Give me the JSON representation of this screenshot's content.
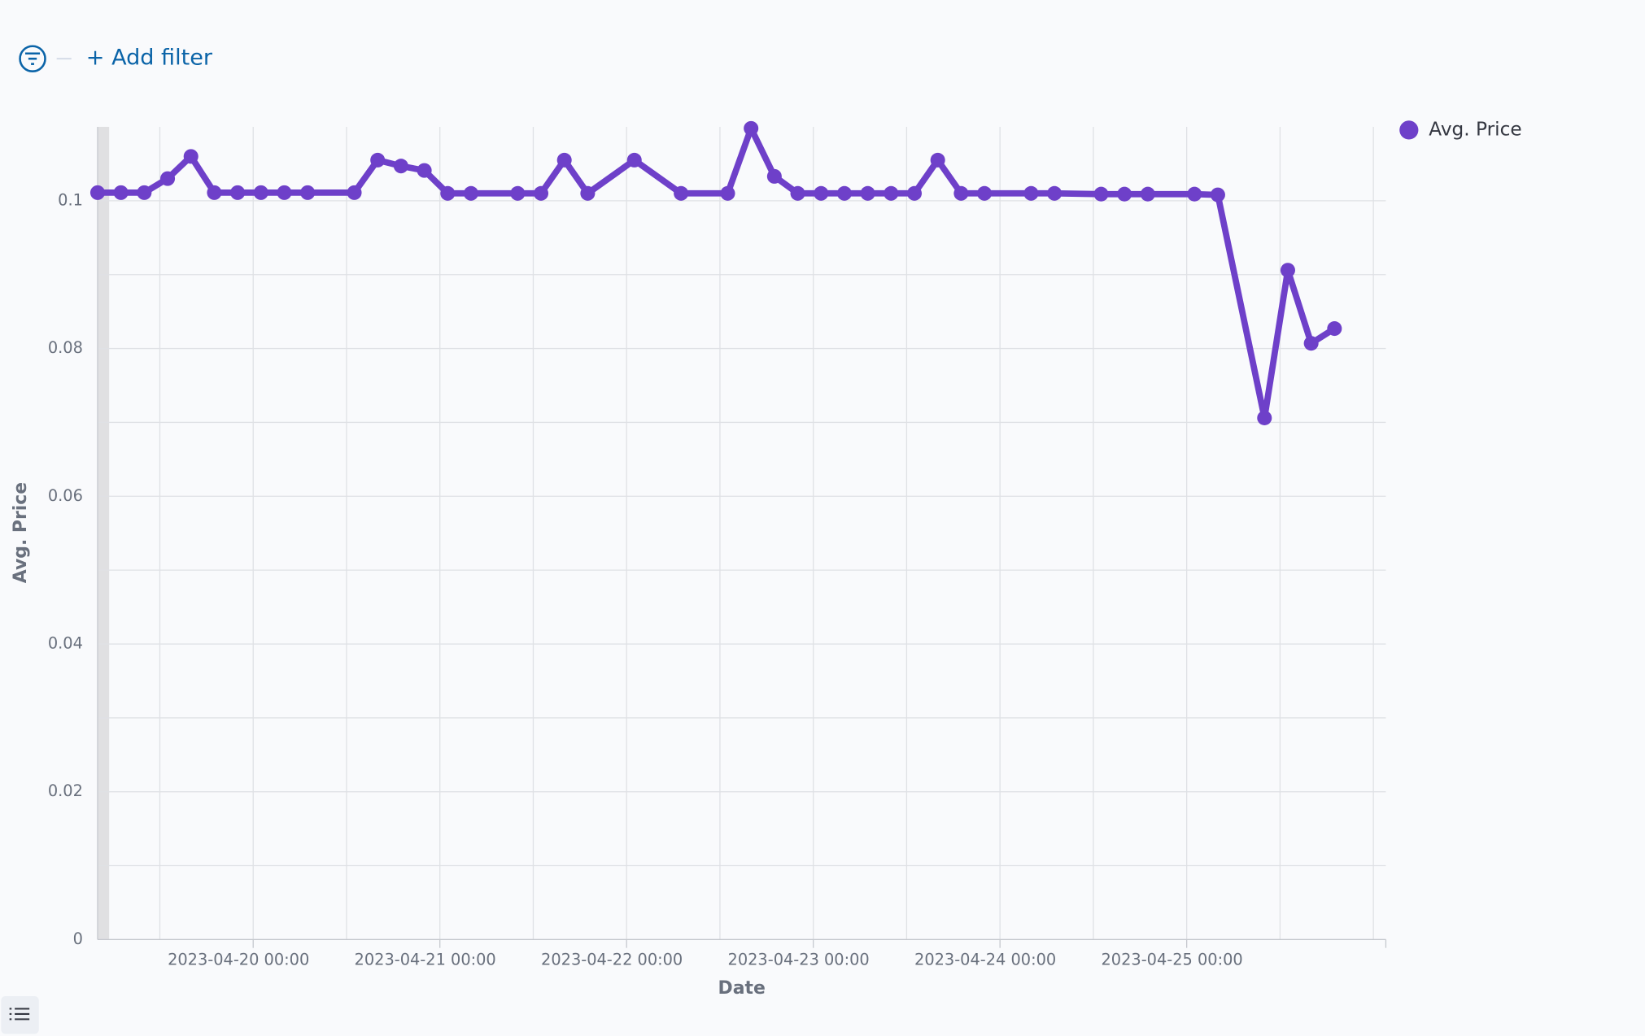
{
  "ui": {
    "add_filter": "+ Add filter"
  },
  "chart_data": {
    "type": "line",
    "x_label": "Date",
    "y_label": "Avg. Price",
    "x": [
      "2023-04-19 04:00",
      "2023-04-19 07:00",
      "2023-04-19 10:00",
      "2023-04-19 13:00",
      "2023-04-19 16:00",
      "2023-04-19 19:00",
      "2023-04-19 22:00",
      "2023-04-20 01:00",
      "2023-04-20 04:00",
      "2023-04-20 07:00",
      "2023-04-20 13:00",
      "2023-04-20 16:00",
      "2023-04-20 19:00",
      "2023-04-20 22:00",
      "2023-04-21 01:00",
      "2023-04-21 04:00",
      "2023-04-21 10:00",
      "2023-04-21 13:00",
      "2023-04-21 16:00",
      "2023-04-21 19:00",
      "2023-04-22 01:00",
      "2023-04-22 07:00",
      "2023-04-22 13:00",
      "2023-04-22 16:00",
      "2023-04-22 19:00",
      "2023-04-22 22:00",
      "2023-04-23 01:00",
      "2023-04-23 04:00",
      "2023-04-23 07:00",
      "2023-04-23 10:00",
      "2023-04-23 13:00",
      "2023-04-23 16:00",
      "2023-04-23 19:00",
      "2023-04-23 22:00",
      "2023-04-24 04:00",
      "2023-04-24 07:00",
      "2023-04-24 13:00",
      "2023-04-24 16:00",
      "2023-04-24 19:00",
      "2023-04-25 01:00",
      "2023-04-25 04:00",
      "2023-04-25 10:00",
      "2023-04-25 13:00",
      "2023-04-25 16:00",
      "2023-04-25 19:00"
    ],
    "series": [
      {
        "name": "Avg. Price",
        "color": "#6e40c9",
        "values": [
          0.1011,
          0.1011,
          0.1011,
          0.103,
          0.106,
          0.1011,
          0.1011,
          0.1011,
          0.1011,
          0.1011,
          0.1011,
          0.1055,
          0.1047,
          0.1041,
          0.101,
          0.101,
          0.101,
          0.101,
          0.1055,
          0.101,
          0.1055,
          0.101,
          0.101,
          0.1098,
          0.1033,
          0.101,
          0.101,
          0.101,
          0.101,
          0.101,
          0.101,
          0.1055,
          0.101,
          0.101,
          0.101,
          0.101,
          0.1009,
          0.1009,
          0.1009,
          0.1009,
          0.1008,
          0.0706,
          0.0906,
          0.0807,
          0.0827
        ]
      }
    ],
    "xlim": [
      "2023-04-19 04:00",
      "2023-04-26 01:36"
    ],
    "xticks": [
      "2023-04-20 00:00",
      "2023-04-21 00:00",
      "2023-04-22 00:00",
      "2023-04-23 00:00",
      "2023-04-24 00:00",
      "2023-04-25 00:00"
    ],
    "xminorticks": [
      "2023-04-19 12:00",
      "2023-04-20 12:00",
      "2023-04-21 12:00",
      "2023-04-22 12:00",
      "2023-04-23 12:00",
      "2023-04-24 12:00",
      "2023-04-25 12:00",
      "2023-04-26 00:00"
    ],
    "ylim": [
      0,
      0.11
    ],
    "yticks": [
      0,
      0.02,
      0.04,
      0.06,
      0.08,
      0.1
    ],
    "yminorticks": [
      0.01,
      0.03,
      0.05,
      0.07,
      0.09
    ],
    "grid": true,
    "legend": "right"
  }
}
